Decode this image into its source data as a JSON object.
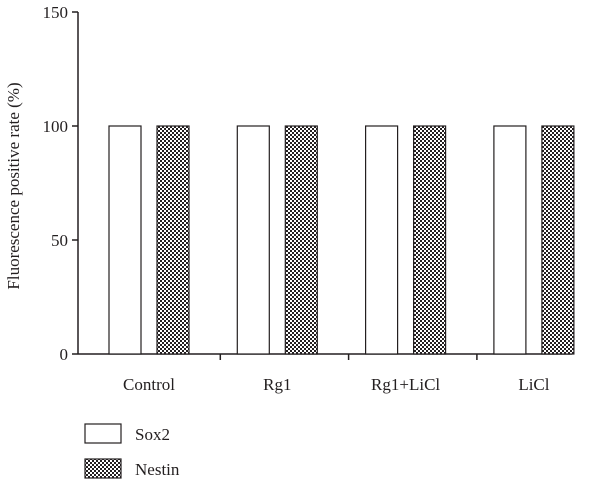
{
  "chart_data": {
    "type": "bar",
    "categories": [
      "Control",
      "Rg1",
      "Rg1+LiCl",
      "LiCl"
    ],
    "series": [
      {
        "name": "Sox2",
        "values": [
          100,
          100,
          100,
          100
        ],
        "fill": "white"
      },
      {
        "name": "Nestin",
        "values": [
          100,
          100,
          100,
          100
        ],
        "fill": "checkered"
      }
    ],
    "title": "",
    "xlabel": "",
    "ylabel": "Fluorescence positive rate (%)",
    "ylim": [
      0,
      150
    ],
    "yticks": [
      0,
      50,
      100,
      150
    ],
    "grid": false,
    "legend_position": "bottom-left"
  },
  "colors": {
    "ink": "#231f20",
    "background": "#ffffff"
  }
}
